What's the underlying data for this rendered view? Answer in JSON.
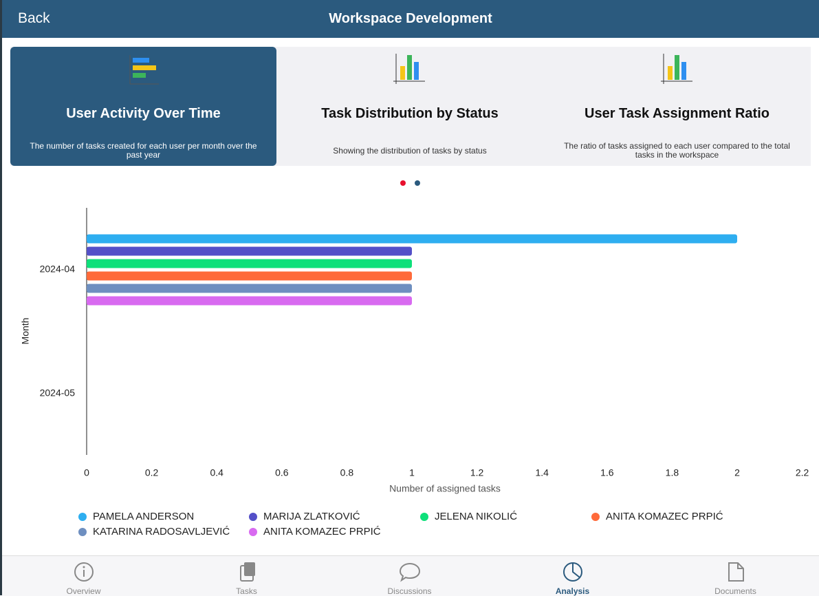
{
  "header": {
    "back": "Back",
    "title": "Workspace Development"
  },
  "cards": [
    {
      "title": "User Activity Over Time",
      "description": "The number of tasks created for each user per month over the past year"
    },
    {
      "title": "Task Distribution by Status",
      "description": "Showing the distribution of tasks by status"
    },
    {
      "title": "User Task Assignment Ratio",
      "description": "The ratio of tasks assigned to each user compared to the total tasks in the workspace"
    }
  ],
  "chart_data": {
    "type": "bar",
    "orientation": "horizontal",
    "categories": [
      "2024-04",
      "2024-05"
    ],
    "series": [
      {
        "name": "PAMELA ANDERSON",
        "color": "#2eaef0",
        "values": [
          2,
          null
        ]
      },
      {
        "name": "MARIJA ZLATKOVIĆ",
        "color": "#5450c8",
        "values": [
          1,
          null
        ]
      },
      {
        "name": "JELENA NIKOLIĆ",
        "color": "#0ee07a",
        "values": [
          1,
          null
        ]
      },
      {
        "name": "ANITA KOMAZEC PRPIĆ",
        "color": "#ff6a3a",
        "values": [
          1,
          null
        ]
      },
      {
        "name": "KATARINA RADOSAVLJEVIĆ",
        "color": "#6e8fc0",
        "values": [
          1,
          null
        ]
      },
      {
        "name": "ANITA KOMAZEC PRPIĆ",
        "color": "#d86af0",
        "values": [
          1,
          null
        ]
      }
    ],
    "xlim": [
      0,
      2.2
    ],
    "xticks": [
      0,
      0.2,
      0.4,
      0.6,
      0.8,
      1,
      1.2,
      1.4,
      1.6,
      1.8,
      2,
      2.2
    ],
    "xlabel": "Number of assigned tasks",
    "ylabel": "Month"
  },
  "tabs": [
    "Overview",
    "Tasks",
    "Discussions",
    "Analysis",
    "Documents"
  ]
}
